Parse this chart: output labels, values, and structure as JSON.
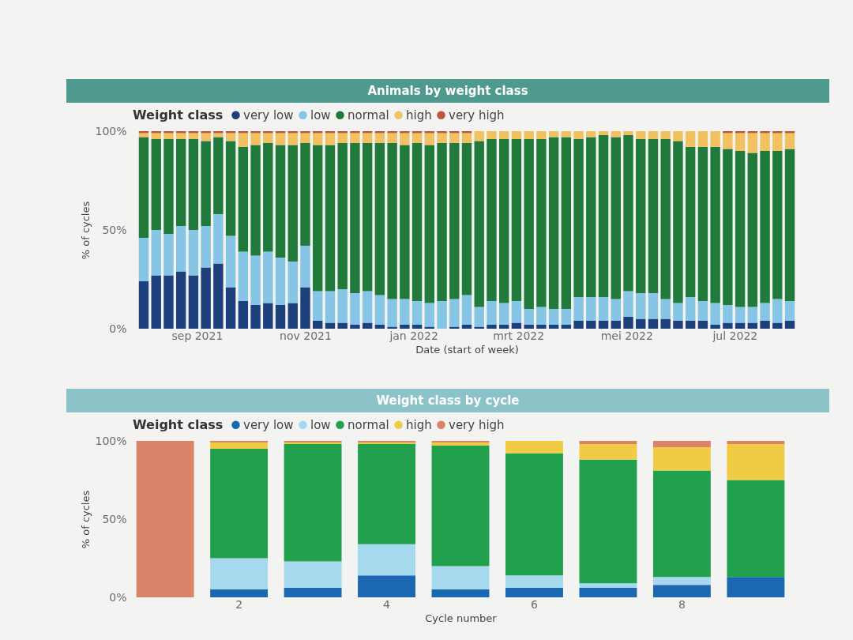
{
  "chart_data": [
    {
      "type": "bar",
      "title": "Animals by weight class",
      "xlabel": "Date (start of week)",
      "ylabel": "% of cycles",
      "legend_title": "Weight class",
      "legend": "top left",
      "stacked": true,
      "x": [
        "2021-08-02",
        "2021-08-09",
        "2021-08-16",
        "2021-08-23",
        "2021-08-30",
        "2021-09-06",
        "2021-09-13",
        "2021-09-20",
        "2021-09-27",
        "2021-10-04",
        "2021-10-11",
        "2021-10-18",
        "2021-10-25",
        "2021-11-01",
        "2021-11-08",
        "2021-11-15",
        "2021-11-22",
        "2021-11-29",
        "2021-12-06",
        "2021-12-13",
        "2021-12-20",
        "2021-12-27",
        "2022-01-03",
        "2022-01-10",
        "2022-01-17",
        "2022-01-24",
        "2022-01-31",
        "2022-02-07",
        "2022-02-14",
        "2022-02-21",
        "2022-02-28",
        "2022-03-07",
        "2022-03-14",
        "2022-03-21",
        "2022-03-28",
        "2022-04-04",
        "2022-04-11",
        "2022-04-18",
        "2022-04-25",
        "2022-05-02",
        "2022-05-09",
        "2022-05-16",
        "2022-05-23",
        "2022-05-30",
        "2022-06-06",
        "2022-06-13",
        "2022-06-20",
        "2022-06-27",
        "2022-07-04",
        "2022-07-11",
        "2022-07-18",
        "2022-07-25",
        "2022-08-01"
      ],
      "xlim": [
        "2021-07-29",
        "2022-08-05"
      ],
      "xticks": [
        {
          "value": "2021-09-01",
          "label": "sep 2021"
        },
        {
          "value": "2021-11-01",
          "label": "nov 2021"
        },
        {
          "value": "2022-01-01",
          "label": "jan 2022"
        },
        {
          "value": "2022-03-01",
          "label": "mrt 2022"
        },
        {
          "value": "2022-05-01",
          "label": "mei 2022"
        },
        {
          "value": "2022-07-01",
          "label": "jul 2022"
        }
      ],
      "ylim": [
        0,
        100
      ],
      "yticks": [
        {
          "value": 0,
          "label": "0%"
        },
        {
          "value": 50,
          "label": "50%"
        },
        {
          "value": 100,
          "label": "100%"
        }
      ],
      "series": [
        {
          "name": "very low",
          "color": "#1d3f7c",
          "values": [
            24,
            27,
            27,
            29,
            27,
            31,
            33,
            21,
            14,
            12,
            13,
            12,
            13,
            21,
            4,
            3,
            3,
            2,
            3,
            2,
            1,
            2,
            2,
            1,
            0,
            1,
            2,
            1,
            2,
            2,
            3,
            2,
            2,
            2,
            2,
            4,
            4,
            4,
            4,
            6,
            5,
            5,
            5,
            4,
            4,
            4,
            2,
            3,
            3,
            3,
            4,
            3,
            4
          ]
        },
        {
          "name": "low",
          "color": "#86c5e6",
          "values": [
            22,
            23,
            21,
            23,
            23,
            21,
            25,
            26,
            25,
            25,
            26,
            24,
            21,
            21,
            15,
            16,
            17,
            16,
            16,
            15,
            14,
            13,
            12,
            12,
            14,
            14,
            15,
            10,
            12,
            11,
            11,
            8,
            9,
            8,
            8,
            12,
            12,
            12,
            11,
            13,
            13,
            13,
            10,
            9,
            12,
            10,
            11,
            9,
            8,
            8,
            9,
            12,
            10
          ]
        },
        {
          "name": "normal",
          "color": "#1f7a3c",
          "values": [
            51,
            46,
            48,
            44,
            46,
            43,
            39,
            48,
            53,
            56,
            55,
            57,
            59,
            52,
            74,
            74,
            74,
            76,
            75,
            77,
            79,
            78,
            80,
            80,
            80,
            79,
            77,
            84,
            82,
            83,
            82,
            86,
            85,
            87,
            87,
            80,
            81,
            82,
            82,
            79,
            78,
            78,
            81,
            82,
            76,
            78,
            79,
            79,
            79,
            78,
            77,
            75,
            77
          ]
        },
        {
          "name": "high",
          "color": "#f2c162",
          "values": [
            2,
            3,
            3,
            3,
            3,
            4,
            2,
            4,
            7,
            6,
            5,
            6,
            6,
            5,
            6,
            6,
            5,
            5,
            5,
            5,
            5,
            6,
            5,
            6,
            5,
            5,
            5,
            5,
            4,
            4,
            4,
            4,
            4,
            3,
            3,
            4,
            3,
            2,
            3,
            2,
            4,
            4,
            4,
            5,
            8,
            8,
            8,
            8,
            9,
            10,
            9,
            9,
            8
          ]
        },
        {
          "name": "very high",
          "color": "#c0563a",
          "values": [
            1,
            1,
            1,
            1,
            1,
            1,
            1,
            1,
            1,
            1,
            1,
            1,
            1,
            1,
            1,
            1,
            1,
            1,
            1,
            1,
            1,
            1,
            1,
            1,
            1,
            1,
            1,
            0,
            0,
            0,
            0,
            0,
            0,
            0,
            0,
            0,
            0,
            0,
            0,
            0,
            0,
            0,
            0,
            0,
            0,
            0,
            0,
            1,
            1,
            1,
            1,
            1,
            1
          ]
        }
      ]
    },
    {
      "type": "bar",
      "title": "Weight class by cycle",
      "xlabel": "Cycle number",
      "ylabel": "% of cycles",
      "legend_title": "Weight class",
      "legend": "top left",
      "stacked": true,
      "categories": [
        null,
        "2",
        null,
        "4",
        null,
        "6",
        null,
        "8",
        null
      ],
      "ylim": [
        0,
        100
      ],
      "yticks": [
        {
          "value": 0,
          "label": "0%"
        },
        {
          "value": 50,
          "label": "50%"
        },
        {
          "value": 100,
          "label": "100%"
        }
      ],
      "series": [
        {
          "name": "very low",
          "color": "#1b68b0",
          "values": [
            0,
            5,
            6,
            14,
            5,
            6,
            6,
            8,
            13
          ]
        },
        {
          "name": "low",
          "color": "#a6d9ee",
          "values": [
            0,
            20,
            17,
            20,
            15,
            8,
            3,
            5,
            0
          ]
        },
        {
          "name": "normal",
          "color": "#21a04e",
          "values": [
            0,
            70,
            75,
            64,
            77,
            78,
            79,
            68,
            62
          ]
        },
        {
          "name": "high",
          "color": "#f0cc45",
          "values": [
            0,
            4,
            1,
            1,
            2,
            8,
            10,
            15,
            23
          ]
        },
        {
          "name": "very high",
          "color": "#d98468",
          "values": [
            100,
            1,
            1,
            1,
            1,
            0,
            2,
            4,
            2
          ]
        }
      ]
    }
  ]
}
